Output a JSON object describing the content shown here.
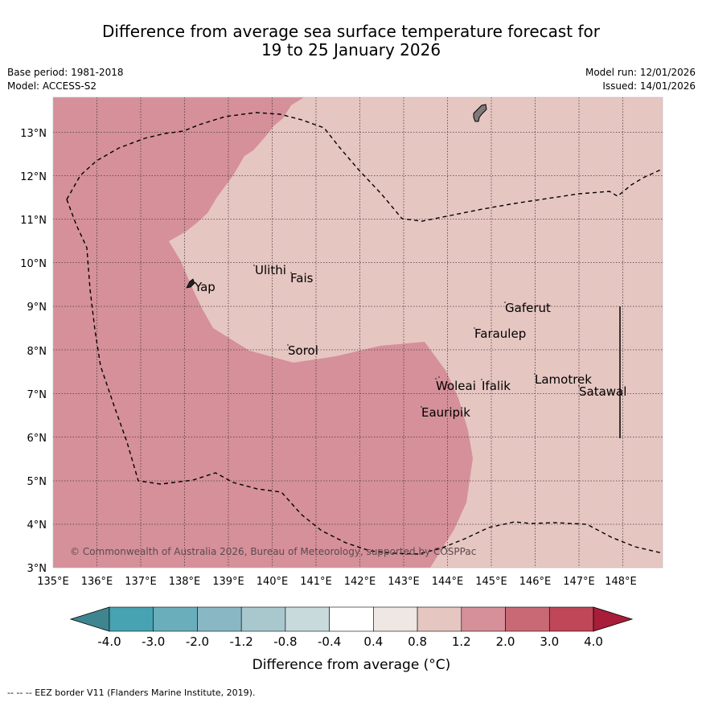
{
  "title": {
    "line1": "Difference from average sea surface temperature forecast for",
    "line2": "19 to 25 January 2026"
  },
  "meta": {
    "base_period": "Base period: 1981-2018",
    "model": "Model: ACCESS-S2",
    "model_run": "Model run: 12/01/2026",
    "issued": "Issued: 14/01/2026"
  },
  "map": {
    "lat_labels": [
      "3°N",
      "4°N",
      "5°N",
      "6°N",
      "7°N",
      "8°N",
      "9°N",
      "10°N",
      "11°N",
      "12°N",
      "13°N"
    ],
    "lon_labels": [
      "135°E",
      "136°E",
      "137°E",
      "138°E",
      "139°E",
      "140°E",
      "141°E",
      "142°E",
      "143°E",
      "144°E",
      "145°E",
      "146°E",
      "147°E",
      "148°E"
    ],
    "places": {
      "yap": "Yap",
      "ulithi": "Ulithi",
      "fais": "Fais",
      "sorol": "Sorol",
      "gaferut": "Gaferut",
      "faraulep": "Faraulep",
      "woleai": "Woleai",
      "ifalik": "Ifalik",
      "lamotrek": "Lamotrek",
      "satawal": "Satawal",
      "eauripik": "Eauripik"
    },
    "copyright": "© Commonwealth of Australia 2026, Bureau of Meteorology, supported by COSPPac",
    "colors": {
      "class_2_0_to_3_0": "#d5909a",
      "class_0_8_to_1_2": "#e6c6c1"
    }
  },
  "colorbar": {
    "labels": [
      "-4.0",
      "-3.0",
      "-2.0",
      "-1.2",
      "-0.8",
      "-0.4",
      "0.4",
      "0.8",
      "1.2",
      "2.0",
      "3.0",
      "4.0"
    ],
    "colors": [
      "#3f8590",
      "#47a2b2",
      "#6aaebb",
      "#89b8c4",
      "#a9c8ce",
      "#c9dadd",
      "#ffffff",
      "#eee7e3",
      "#e6c6c1",
      "#d5909a",
      "#c96976",
      "#bf4757",
      "#a81d3a"
    ],
    "axis_label": "Difference from average (°C)"
  },
  "footer": {
    "eez_note": "--  --  -- EEZ border V11 (Flanders Marine Institute, 2019)."
  }
}
